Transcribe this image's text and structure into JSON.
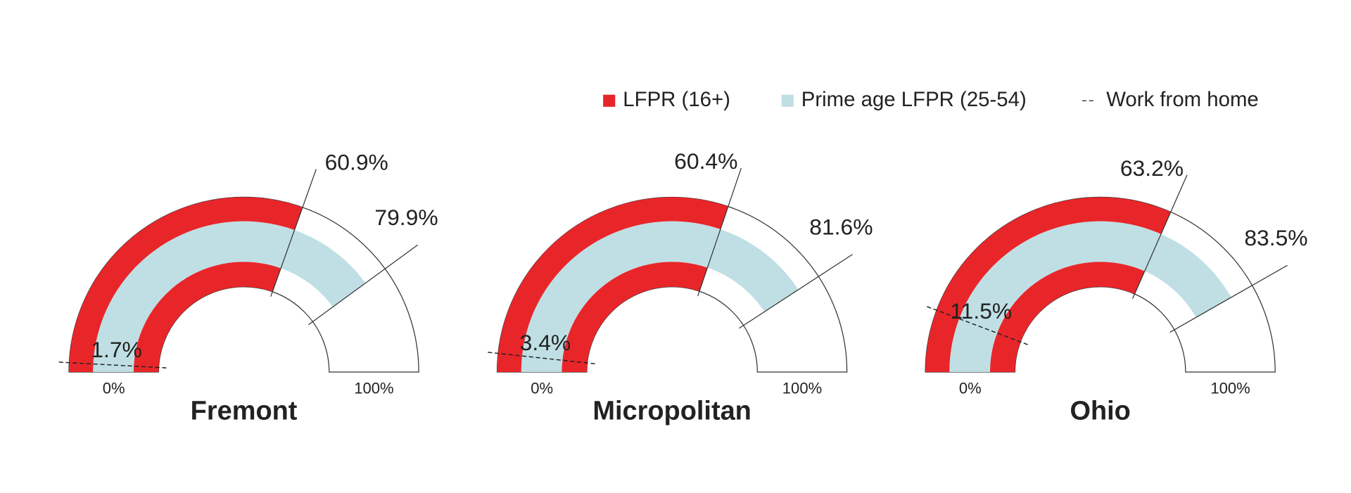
{
  "chart_data": {
    "type": "gauge",
    "categories": [
      "Fremont",
      "Micropolitan",
      "Ohio"
    ],
    "series": [
      {
        "name": "LFPR (16+)",
        "color": "#e8262a",
        "values": [
          60.9,
          60.4,
          63.2
        ],
        "value_labels": [
          "60.9%",
          "60.4%",
          "63.2%"
        ]
      },
      {
        "name": "Prime age LFPR (25-54)",
        "color": "#bfdfe4",
        "values": [
          79.9,
          81.6,
          83.5
        ],
        "value_labels": [
          "79.9%",
          "81.6%",
          "83.5%"
        ]
      },
      {
        "name": "Work from home",
        "color": "#222222",
        "style": "dashed",
        "values": [
          1.7,
          3.4,
          11.5
        ],
        "value_labels": [
          "1.7%",
          "3.4%",
          "11.5%"
        ]
      }
    ],
    "xlim": [
      0,
      100
    ],
    "xticks": [
      {
        "value": 0,
        "label": "0%"
      },
      {
        "value": 100,
        "label": "100%"
      }
    ]
  }
}
